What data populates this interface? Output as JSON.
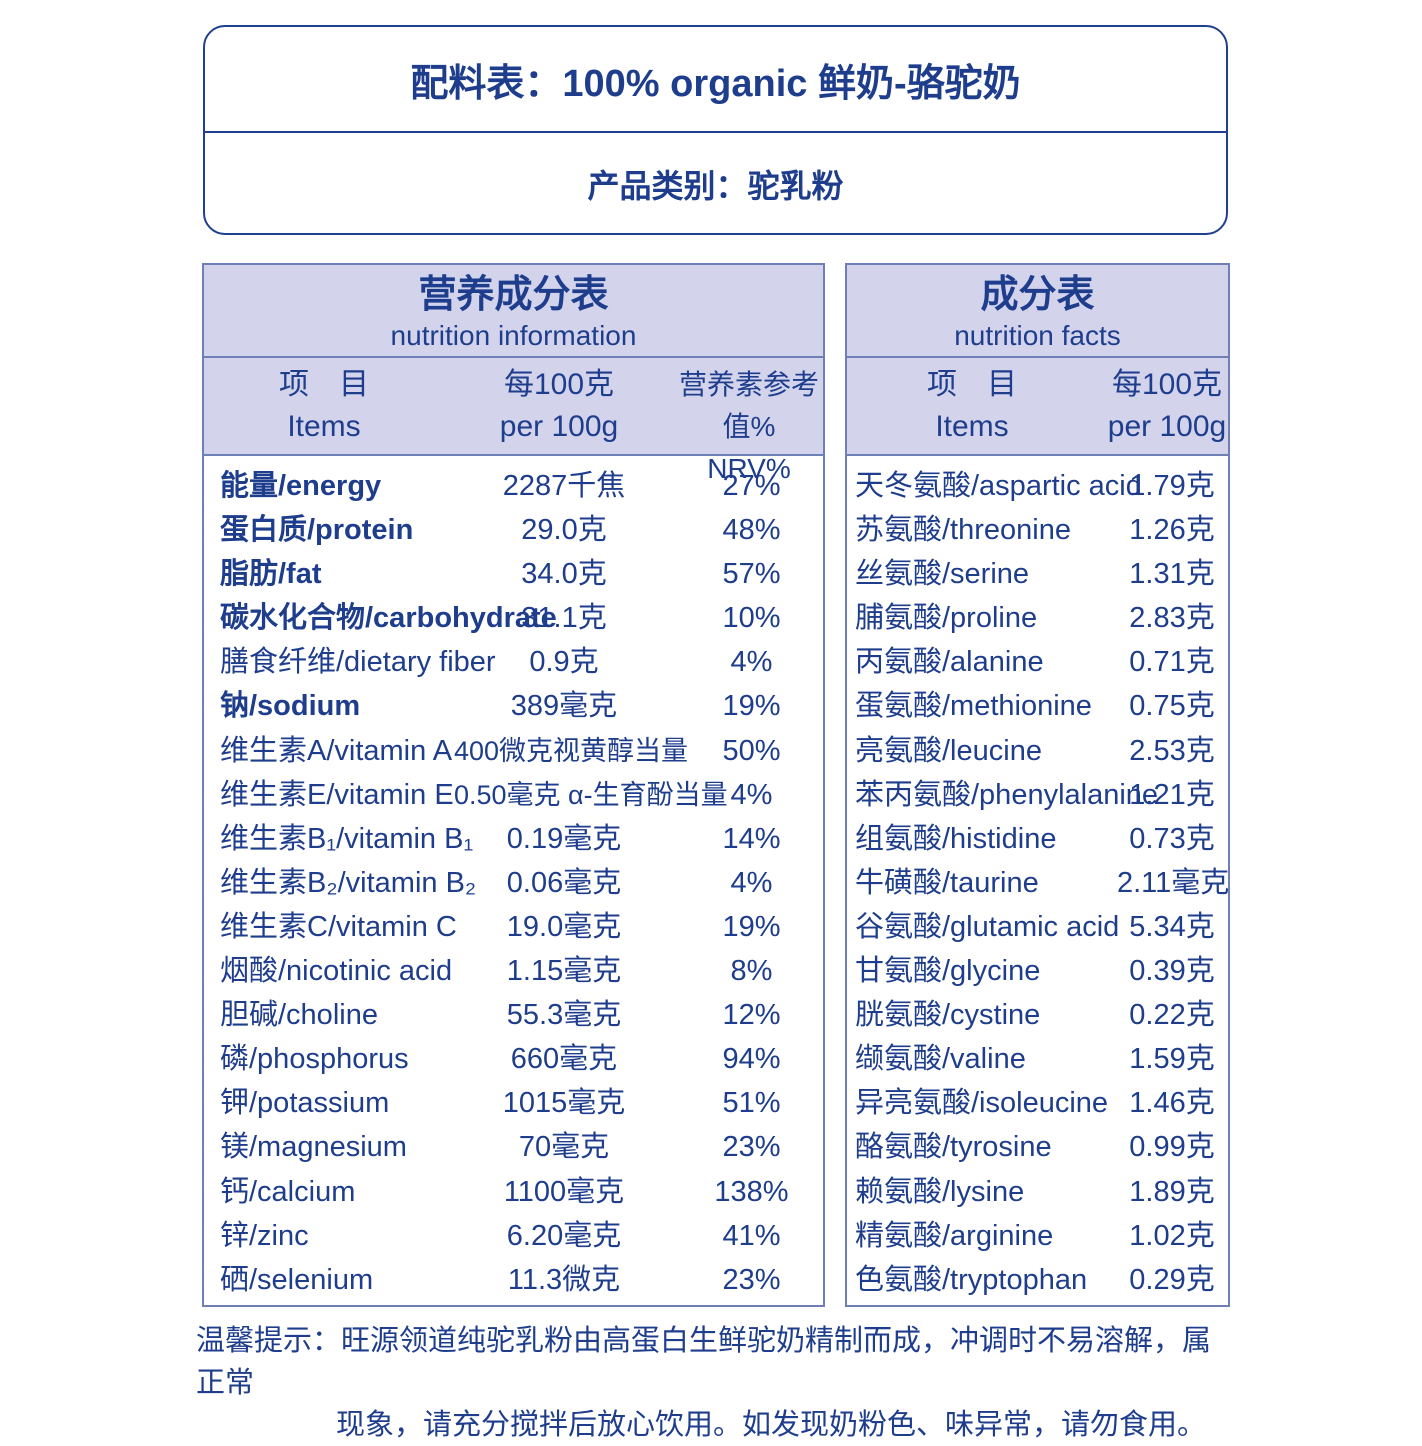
{
  "header": {
    "ingredients": "配料表：100% organic 鲜奶-骆驼奶",
    "category": "产品类别：驼乳粉"
  },
  "nutrition": {
    "title_cn": "营养成分表",
    "title_en": "nutrition information",
    "col_item_cn": "项　目",
    "col_item_en": "Items",
    "col_per_cn": "每100克",
    "col_per_en": "per 100g",
    "col_nrv_cn": "营养素参考值%",
    "col_nrv_en": "NRV%",
    "rows": [
      {
        "name": "能量/energy",
        "value": "2287千焦",
        "nrv": "27%",
        "bold": true
      },
      {
        "name": "蛋白质/protein",
        "value": "29.0克",
        "nrv": "48%",
        "bold": true
      },
      {
        "name": "脂肪/fat",
        "value": "34.0克",
        "nrv": "57%",
        "bold": true
      },
      {
        "name": "碳水化合物/carbohydrate",
        "value": "31.1克",
        "nrv": "10%",
        "bold": true
      },
      {
        "name": "膳食纤维/dietary fiber",
        "value": "0.9克",
        "nrv": "4%",
        "bold": false
      },
      {
        "name": "钠/sodium",
        "value": "389毫克",
        "nrv": "19%",
        "bold": true
      },
      {
        "name": "维生素A/vitamin A",
        "value": "400微克视黄醇当量",
        "nrv": "50%",
        "bold": false
      },
      {
        "name": "维生素E/vitamin E",
        "value": "0.50毫克 α-生育酚当量",
        "nrv": "4%",
        "bold": false
      },
      {
        "name": "维生素B₁/vitamin B₁",
        "value": "0.19毫克",
        "nrv": "14%",
        "bold": false
      },
      {
        "name": "维生素B₂/vitamin B₂",
        "value": "0.06毫克",
        "nrv": "4%",
        "bold": false
      },
      {
        "name": "维生素C/vitamin C",
        "value": "19.0毫克",
        "nrv": "19%",
        "bold": false
      },
      {
        "name": "烟酸/nicotinic acid",
        "value": "1.15毫克",
        "nrv": "8%",
        "bold": false
      },
      {
        "name": "胆碱/choline",
        "value": "55.3毫克",
        "nrv": "12%",
        "bold": false
      },
      {
        "name": "磷/phosphorus",
        "value": "660毫克",
        "nrv": "94%",
        "bold": false
      },
      {
        "name": "钾/potassium",
        "value": "1015毫克",
        "nrv": "51%",
        "bold": false
      },
      {
        "name": "镁/magnesium",
        "value": "70毫克",
        "nrv": "23%",
        "bold": false
      },
      {
        "name": "钙/calcium",
        "value": "1100毫克",
        "nrv": "138%",
        "bold": false
      },
      {
        "name": "锌/zinc",
        "value": "6.20毫克",
        "nrv": "41%",
        "bold": false
      },
      {
        "name": "硒/selenium",
        "value": "11.3微克",
        "nrv": "23%",
        "bold": false
      }
    ]
  },
  "facts": {
    "title_cn": "成分表",
    "title_en": "nutrition facts",
    "col_item_cn": "项　目",
    "col_item_en": "Items",
    "col_per_cn": "每100克",
    "col_per_en": "per 100g",
    "rows": [
      {
        "name": "天冬氨酸/aspartic acid",
        "value": "1.79克"
      },
      {
        "name": "苏氨酸/threonine",
        "value": "1.26克"
      },
      {
        "name": "丝氨酸/serine",
        "value": "1.31克"
      },
      {
        "name": "脯氨酸/proline",
        "value": "2.83克"
      },
      {
        "name": "丙氨酸/alanine",
        "value": "0.71克"
      },
      {
        "name": "蛋氨酸/methionine",
        "value": "0.75克"
      },
      {
        "name": "亮氨酸/leucine",
        "value": "2.53克"
      },
      {
        "name": "苯丙氨酸/phenylalanine",
        "value": "1.21克"
      },
      {
        "name": "组氨酸/histidine",
        "value": "0.73克"
      },
      {
        "name": "牛磺酸/taurine",
        "value": "2.11毫克"
      },
      {
        "name": "谷氨酸/glutamic acid",
        "value": "5.34克"
      },
      {
        "name": "甘氨酸/glycine",
        "value": "0.39克"
      },
      {
        "name": "胱氨酸/cystine",
        "value": "0.22克"
      },
      {
        "name": "缬氨酸/valine",
        "value": "1.59克"
      },
      {
        "name": "异亮氨酸/isoleucine",
        "value": "1.46克"
      },
      {
        "name": "酪氨酸/tyrosine",
        "value": "0.99克"
      },
      {
        "name": "赖氨酸/lysine",
        "value": "1.89克"
      },
      {
        "name": "精氨酸/arginine",
        "value": "1.02克"
      },
      {
        "name": "色氨酸/tryptophan",
        "value": "0.29克"
      }
    ]
  },
  "footer": {
    "line1": "温馨提示：旺源领道纯驼乳粉由高蛋白生鲜驼奶精制而成，冲调时不易溶解，属正常",
    "line2": "现象，请充分搅拌后放心饮用。如发现奶粉色、味异常，请勿食用。"
  }
}
